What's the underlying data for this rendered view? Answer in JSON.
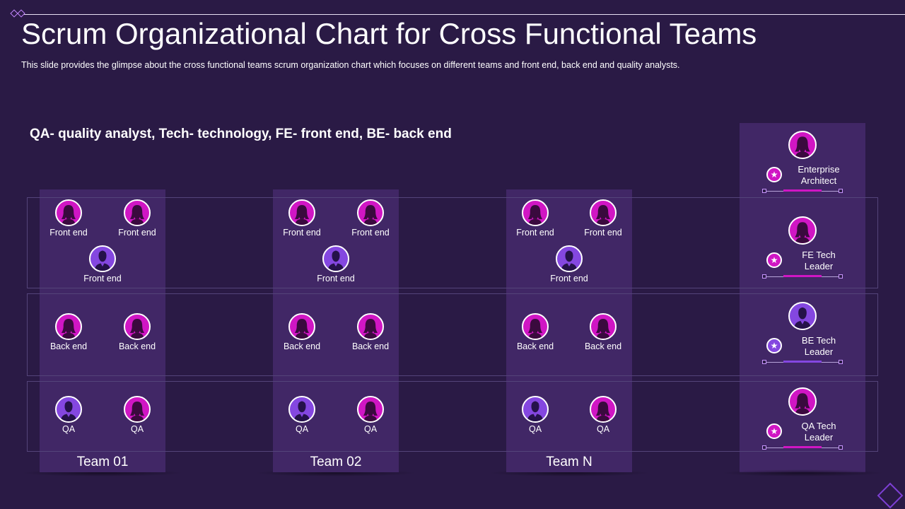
{
  "header": {
    "title": "Scrum Organizational Chart for Cross Functional Teams",
    "subtitle": "This slide provides  the glimpse about the cross functional  teams scrum organization chart which focuses on different  teams and front end, back end and quality analysts."
  },
  "legend": "QA- quality analyst, Tech- technology, FE- front end, BE- back end",
  "colors": {
    "background": "#2a1a45",
    "column": "#412766",
    "female_avatar": "#d016c4",
    "male_avatar": "#8447e0"
  },
  "teams": [
    {
      "name": "Team 01",
      "front_end": [
        "Front end",
        "Front end",
        "Front end"
      ],
      "back_end": [
        "Back end",
        "Back end"
      ],
      "qa": [
        "QA",
        "QA"
      ]
    },
    {
      "name": "Team 02",
      "front_end": [
        "Front end",
        "Front end",
        "Front end"
      ],
      "back_end": [
        "Back end",
        "Back end"
      ],
      "qa": [
        "QA",
        "QA"
      ]
    },
    {
      "name": "Team N",
      "front_end": [
        "Front end",
        "Front end",
        "Front end"
      ],
      "back_end": [
        "Back end",
        "Back end"
      ],
      "qa": [
        "QA",
        "QA"
      ]
    }
  ],
  "leaders": [
    {
      "line1": "Enterprise",
      "line2": "Architect",
      "icon": "star-icon"
    },
    {
      "line1": "FE Tech",
      "line2": "Leader",
      "icon": "star-icon"
    },
    {
      "line1": "BE Tech",
      "line2": "Leader",
      "icon": "star-icon"
    },
    {
      "line1": "QA Tech",
      "line2": "Leader",
      "icon": "star-icon"
    }
  ],
  "icons": {
    "star": "★"
  }
}
